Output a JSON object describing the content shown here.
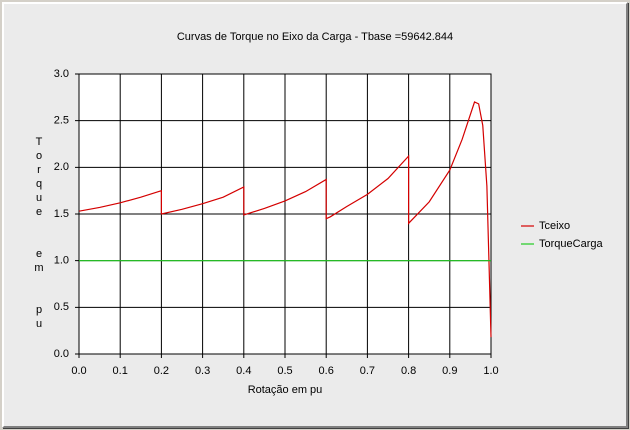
{
  "chart_data": {
    "type": "line",
    "title": "Curvas de Torque no Eixo da Carga - Tbase =59642.844",
    "x_label": "Rotação  em  pu",
    "y_label": "Torque  em  pu",
    "series": [
      {
        "name": "Tceixo",
        "color": "#d40000",
        "x": [
          0,
          0.05,
          0.1,
          0.15,
          0.2,
          0.2,
          0.25,
          0.3,
          0.35,
          0.4,
          0.4,
          0.45,
          0.5,
          0.55,
          0.6,
          0.6,
          0.61,
          0.65,
          0.7,
          0.75,
          0.8,
          0.8,
          0.85,
          0.9,
          0.93,
          0.96,
          0.97,
          0.98,
          0.99,
          0.995,
          1.0
        ],
        "values": [
          1.53,
          1.57,
          1.62,
          1.68,
          1.75,
          1.5,
          1.55,
          1.61,
          1.68,
          1.79,
          1.49,
          1.56,
          1.64,
          1.74,
          1.87,
          1.45,
          1.47,
          1.58,
          1.71,
          1.88,
          2.12,
          1.4,
          1.63,
          1.97,
          2.3,
          2.7,
          2.68,
          2.45,
          1.8,
          1.0,
          0.18
        ]
      },
      {
        "name": "TorqueCarga",
        "color": "#22cc22",
        "x": [
          0,
          1.0
        ],
        "values": [
          1.0,
          1.0
        ]
      }
    ],
    "xlim": [
      0,
      1.0
    ],
    "xticks": [
      {
        "value": 0,
        "label": "0.0"
      },
      0.1,
      0.2,
      0.3,
      0.4,
      0.5,
      0.6,
      0.7,
      0.8,
      0.9,
      {
        "value": 1.0,
        "label": "1.0"
      }
    ],
    "ylim": [
      0,
      3.0
    ],
    "yticks": [
      {
        "value": 0,
        "label": "0.0"
      },
      0.5,
      {
        "value": 1.0,
        "label": "1.0"
      },
      1.5,
      {
        "value": 2.0,
        "label": "2.0"
      },
      2.5,
      {
        "value": 3.0,
        "label": "3.0"
      }
    ],
    "grid": true,
    "legend": "right"
  }
}
